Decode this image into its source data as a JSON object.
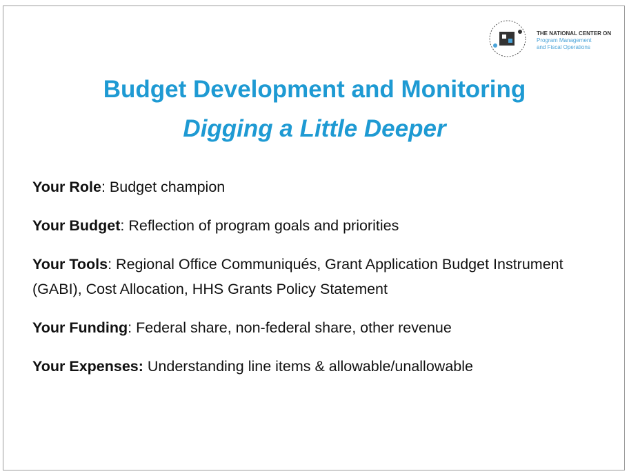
{
  "logo": {
    "line1": "THE NATIONAL CENTER ON",
    "line2": "Program Management",
    "line3": "and Fiscal Operations"
  },
  "title": "Budget Development and Monitoring",
  "subtitle": "Digging a Little Deeper",
  "items": [
    {
      "label": "Your Role",
      "text": ": Budget champion"
    },
    {
      "label": "Your Budget",
      "text": ": Reflection of program goals and priorities"
    },
    {
      "label": "Your Tools",
      "text": ": Regional Office Communiqués, Grant Application Budget Instrument (GABI), Cost Allocation, HHS Grants Policy Statement"
    },
    {
      "label": "Your Funding",
      "text": ": Federal share, non-federal share, other revenue"
    },
    {
      "label": "Your Expenses:",
      "text": " Understanding line items & allowable/unallowable"
    }
  ]
}
